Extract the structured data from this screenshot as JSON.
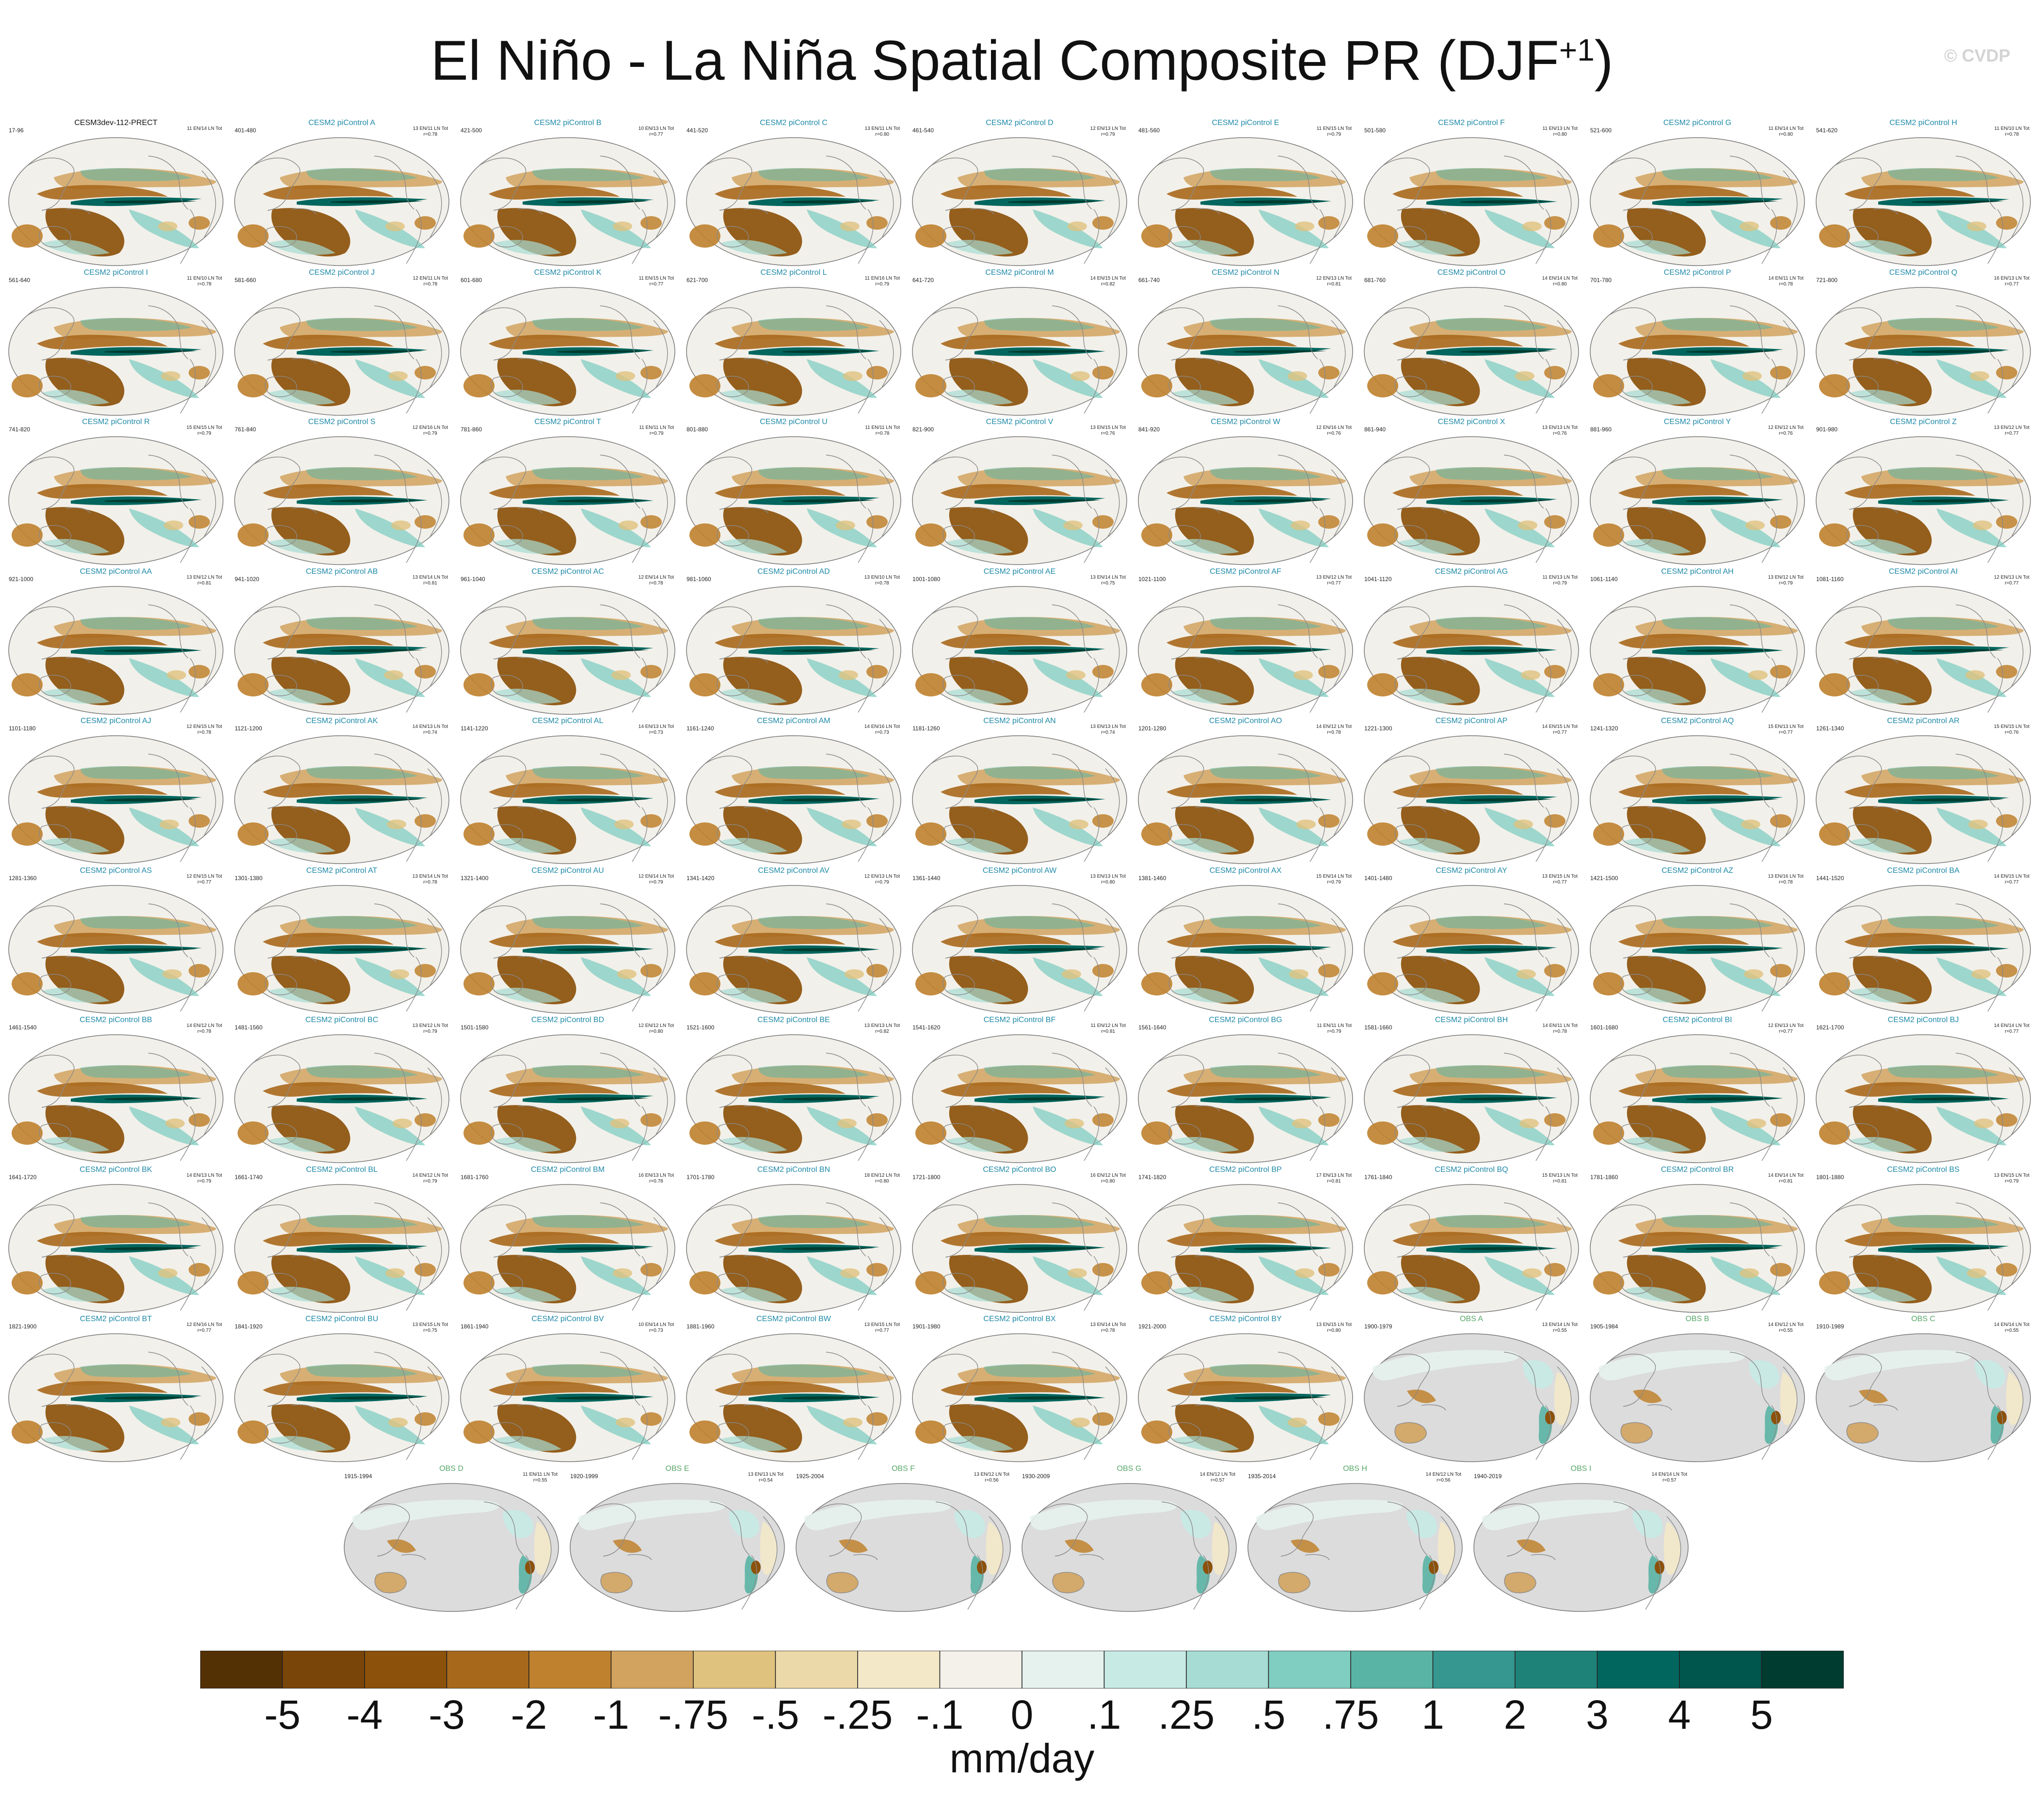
{
  "title": {
    "main": "El Niño - La Niña Spatial Composite PR (DJF",
    "superscript": "+1",
    "close": ")"
  },
  "credit": "© CVDP",
  "colors": {
    "control_name": "#111111",
    "model_name": "#1f8aa8",
    "obs_name": "#58a868",
    "land_obs": "#dcdcdc",
    "coast": "#8a8a8a"
  },
  "panels": [
    {
      "name": "CESM3dev-112-PRECT",
      "years": "17-96",
      "stats": "11 EN/14 LN Tot",
      "type": "control"
    },
    {
      "name": "CESM2 piControl A",
      "years": "401-480",
      "stats": "13 EN/11 LN Tot\nr=0.78",
      "type": "model"
    },
    {
      "name": "CESM2 piControl B",
      "years": "421-500",
      "stats": "10 EN/13 LN Tot\nr=0.77",
      "type": "model"
    },
    {
      "name": "CESM2 piControl C",
      "years": "441-520",
      "stats": "13 EN/11 LN Tot\nr=0.80",
      "type": "model"
    },
    {
      "name": "CESM2 piControl D",
      "years": "461-540",
      "stats": "12 EN/13 LN Tot\nr=0.79",
      "type": "model"
    },
    {
      "name": "CESM2 piControl E",
      "years": "481-560",
      "stats": "11 EN/15 LN Tot\nr=0.79",
      "type": "model"
    },
    {
      "name": "CESM2 piControl F",
      "years": "501-580",
      "stats": "11 EN/13 LN Tot\nr=0.80",
      "type": "model"
    },
    {
      "name": "CESM2 piControl G",
      "years": "521-600",
      "stats": "11 EN/14 LN Tot\nr=0.80",
      "type": "model"
    },
    {
      "name": "CESM2 piControl H",
      "years": "541-620",
      "stats": "11 EN/10 LN Tot\nr=0.78",
      "type": "model"
    },
    {
      "name": "CESM2 piControl I",
      "years": "561-640",
      "stats": "11 EN/10 LN Tot\nr=0.78",
      "type": "model"
    },
    {
      "name": "CESM2 piControl J",
      "years": "581-660",
      "stats": "12 EN/11 LN Tot\nr=0.78",
      "type": "model"
    },
    {
      "name": "CESM2 piControl K",
      "years": "601-680",
      "stats": "11 EN/15 LN Tot\nr=0.77",
      "type": "model"
    },
    {
      "name": "CESM2 piControl L",
      "years": "621-700",
      "stats": "11 EN/16 LN Tot\nr=0.79",
      "type": "model"
    },
    {
      "name": "CESM2 piControl M",
      "years": "641-720",
      "stats": "14 EN/15 LN Tot\nr=0.82",
      "type": "model"
    },
    {
      "name": "CESM2 piControl N",
      "years": "661-740",
      "stats": "12 EN/13 LN Tot\nr=0.81",
      "type": "model"
    },
    {
      "name": "CESM2 piControl O",
      "years": "681-760",
      "stats": "14 EN/14 LN Tot\nr=0.80",
      "type": "model"
    },
    {
      "name": "CESM2 piControl P",
      "years": "701-780",
      "stats": "14 EN/11 LN Tot\nr=0.78",
      "type": "model"
    },
    {
      "name": "CESM2 piControl Q",
      "years": "721-800",
      "stats": "16 EN/13 LN Tot\nr=0.77",
      "type": "model"
    },
    {
      "name": "CESM2 piControl R",
      "years": "741-820",
      "stats": "15 EN/15 LN Tot\nr=0.79",
      "type": "model"
    },
    {
      "name": "CESM2 piControl S",
      "years": "761-840",
      "stats": "12 EN/16 LN Tot\nr=0.79",
      "type": "model"
    },
    {
      "name": "CESM2 piControl T",
      "years": "781-860",
      "stats": "11 EN/11 LN Tot\nr=0.79",
      "type": "model"
    },
    {
      "name": "CESM2 piControl U",
      "years": "801-880",
      "stats": "11 EN/11 LN Tot\nr=0.78",
      "type": "model"
    },
    {
      "name": "CESM2 piControl V",
      "years": "821-900",
      "stats": "13 EN/15 LN Tot\nr=0.76",
      "type": "model"
    },
    {
      "name": "CESM2 piControl W",
      "years": "841-920",
      "stats": "12 EN/16 LN Tot\nr=0.76",
      "type": "model"
    },
    {
      "name": "CESM2 piControl X",
      "years": "861-940",
      "stats": "13 EN/13 LN Tot\nr=0.76",
      "type": "model"
    },
    {
      "name": "CESM2 piControl Y",
      "years": "881-960",
      "stats": "12 EN/12 LN Tot\nr=0.76",
      "type": "model"
    },
    {
      "name": "CESM2 piControl Z",
      "years": "901-980",
      "stats": "13 EN/12 LN Tot\nr=0.77",
      "type": "model"
    },
    {
      "name": "CESM2 piControl AA",
      "years": "921-1000",
      "stats": "13 EN/12 LN Tot\nr=0.81",
      "type": "model"
    },
    {
      "name": "CESM2 piControl AB",
      "years": "941-1020",
      "stats": "13 EN/14 LN Tot\nr=0.81",
      "type": "model"
    },
    {
      "name": "CESM2 piControl AC",
      "years": "961-1040",
      "stats": "12 EN/14 LN Tot\nr=0.78",
      "type": "model"
    },
    {
      "name": "CESM2 piControl AD",
      "years": "981-1060",
      "stats": "13 EN/10 LN Tot\nr=0.78",
      "type": "model"
    },
    {
      "name": "CESM2 piControl AE",
      "years": "1001-1080",
      "stats": "13 EN/14 LN Tot\nr=0.75",
      "type": "model"
    },
    {
      "name": "CESM2 piControl AF",
      "years": "1021-1100",
      "stats": "13 EN/12 LN Tot\nr=0.77",
      "type": "model"
    },
    {
      "name": "CESM2 piControl AG",
      "years": "1041-1120",
      "stats": "11 EN/13 LN Tot\nr=0.79",
      "type": "model"
    },
    {
      "name": "CESM2 piControl AH",
      "years": "1061-1140",
      "stats": "13 EN/12 LN Tot\nr=0.79",
      "type": "model"
    },
    {
      "name": "CESM2 piControl AI",
      "years": "1081-1160",
      "stats": "12 EN/13 LN Tot\nr=0.77",
      "type": "model"
    },
    {
      "name": "CESM2 piControl AJ",
      "years": "1101-1180",
      "stats": "12 EN/15 LN Tot\nr=0.78",
      "type": "model"
    },
    {
      "name": "CESM2 piControl AK",
      "years": "1121-1200",
      "stats": "14 EN/13 LN Tot\nr=0.74",
      "type": "model"
    },
    {
      "name": "CESM2 piControl AL",
      "years": "1141-1220",
      "stats": "14 EN/13 LN Tot\nr=0.73",
      "type": "model"
    },
    {
      "name": "CESM2 piControl AM",
      "years": "1161-1240",
      "stats": "14 EN/16 LN Tot\nr=0.73",
      "type": "model"
    },
    {
      "name": "CESM2 piControl AN",
      "years": "1181-1260",
      "stats": "13 EN/13 LN Tot\nr=0.74",
      "type": "model"
    },
    {
      "name": "CESM2 piControl AO",
      "years": "1201-1280",
      "stats": "14 EN/12 LN Tot\nr=0.78",
      "type": "model"
    },
    {
      "name": "CESM2 piControl AP",
      "years": "1221-1300",
      "stats": "14 EN/15 LN Tot\nr=0.77",
      "type": "model"
    },
    {
      "name": "CESM2 piControl AQ",
      "years": "1241-1320",
      "stats": "15 EN/13 LN Tot\nr=0.77",
      "type": "model"
    },
    {
      "name": "CESM2 piControl AR",
      "years": "1261-1340",
      "stats": "15 EN/15 LN Tot\nr=0.76",
      "type": "model"
    },
    {
      "name": "CESM2 piControl AS",
      "years": "1281-1360",
      "stats": "12 EN/15 LN Tot\nr=0.77",
      "type": "model"
    },
    {
      "name": "CESM2 piControl AT",
      "years": "1301-1380",
      "stats": "13 EN/14 LN Tot\nr=0.78",
      "type": "model"
    },
    {
      "name": "CESM2 piControl AU",
      "years": "1321-1400",
      "stats": "12 EN/14 LN Tot\nr=0.79",
      "type": "model"
    },
    {
      "name": "CESM2 piControl AV",
      "years": "1341-1420",
      "stats": "12 EN/13 LN Tot\nr=0.79",
      "type": "model"
    },
    {
      "name": "CESM2 piControl AW",
      "years": "1361-1440",
      "stats": "13 EN/13 LN Tot\nr=0.80",
      "type": "model"
    },
    {
      "name": "CESM2 piControl AX",
      "years": "1381-1460",
      "stats": "15 EN/14 LN Tot\nr=0.79",
      "type": "model"
    },
    {
      "name": "CESM2 piControl AY",
      "years": "1401-1480",
      "stats": "13 EN/15 LN Tot\nr=0.77",
      "type": "model"
    },
    {
      "name": "CESM2 piControl AZ",
      "years": "1421-1500",
      "stats": "13 EN/16 LN Tot\nr=0.78",
      "type": "model"
    },
    {
      "name": "CESM2 piControl BA",
      "years": "1441-1520",
      "stats": "14 EN/15 LN Tot\nr=0.77",
      "type": "model"
    },
    {
      "name": "CESM2 piControl BB",
      "years": "1461-1540",
      "stats": "14 EN/12 LN Tot\nr=0.78",
      "type": "model"
    },
    {
      "name": "CESM2 piControl BC",
      "years": "1481-1560",
      "stats": "13 EN/12 LN Tot\nr=0.79",
      "type": "model"
    },
    {
      "name": "CESM2 piControl BD",
      "years": "1501-1580",
      "stats": "12 EN/12 LN Tot\nr=0.80",
      "type": "model"
    },
    {
      "name": "CESM2 piControl BE",
      "years": "1521-1600",
      "stats": "13 EN/13 LN Tot\nr=0.82",
      "type": "model"
    },
    {
      "name": "CESM2 piControl BF",
      "years": "1541-1620",
      "stats": "11 EN/12 LN Tot\nr=0.81",
      "type": "model"
    },
    {
      "name": "CESM2 piControl BG",
      "years": "1561-1640",
      "stats": "11 EN/11 LN Tot\nr=0.79",
      "type": "model"
    },
    {
      "name": "CESM2 piControl BH",
      "years": "1581-1660",
      "stats": "14 EN/11 LN Tot\nr=0.78",
      "type": "model"
    },
    {
      "name": "CESM2 piControl BI",
      "years": "1601-1680",
      "stats": "12 EN/13 LN Tot\nr=0.77",
      "type": "model"
    },
    {
      "name": "CESM2 piControl BJ",
      "years": "1621-1700",
      "stats": "14 EN/14 LN Tot\nr=0.77",
      "type": "model"
    },
    {
      "name": "CESM2 piControl BK",
      "years": "1641-1720",
      "stats": "14 EN/13 LN Tot\nr=0.79",
      "type": "model"
    },
    {
      "name": "CESM2 piControl BL",
      "years": "1661-1740",
      "stats": "14 EN/12 LN Tot\nr=0.79",
      "type": "model"
    },
    {
      "name": "CESM2 piControl BM",
      "years": "1681-1760",
      "stats": "16 EN/13 LN Tot\nr=0.78",
      "type": "model"
    },
    {
      "name": "CESM2 piControl BN",
      "years": "1701-1780",
      "stats": "18 EN/12 LN Tot\nr=0.80",
      "type": "model"
    },
    {
      "name": "CESM2 piControl BO",
      "years": "1721-1800",
      "stats": "16 EN/12 LN Tot\nr=0.80",
      "type": "model"
    },
    {
      "name": "CESM2 piControl BP",
      "years": "1741-1820",
      "stats": "17 EN/13 LN Tot\nr=0.81",
      "type": "model"
    },
    {
      "name": "CESM2 piControl BQ",
      "years": "1761-1840",
      "stats": "15 EN/13 LN Tot\nr=0.81",
      "type": "model"
    },
    {
      "name": "CESM2 piControl BR",
      "years": "1781-1860",
      "stats": "14 EN/14 LN Tot\nr=0.81",
      "type": "model"
    },
    {
      "name": "CESM2 piControl BS",
      "years": "1801-1880",
      "stats": "13 EN/15 LN Tot\nr=0.79",
      "type": "model"
    },
    {
      "name": "CESM2 piControl BT",
      "years": "1821-1900",
      "stats": "12 EN/16 LN Tot\nr=0.77",
      "type": "model"
    },
    {
      "name": "CESM2 piControl BU",
      "years": "1841-1920",
      "stats": "13 EN/15 LN Tot\nr=0.75",
      "type": "model"
    },
    {
      "name": "CESM2 piControl BV",
      "years": "1861-1940",
      "stats": "10 EN/14 LN Tot\nr=0.73",
      "type": "model"
    },
    {
      "name": "CESM2 piControl BW",
      "years": "1881-1960",
      "stats": "13 EN/15 LN Tot\nr=0.77",
      "type": "model"
    },
    {
      "name": "CESM2 piControl BX",
      "years": "1901-1980",
      "stats": "13 EN/14 LN Tot\nr=0.78",
      "type": "model"
    },
    {
      "name": "CESM2 piControl BY",
      "years": "1921-2000",
      "stats": "13 EN/15 LN Tot\nr=0.80",
      "type": "model"
    },
    {
      "name": "OBS A",
      "years": "1900-1979",
      "stats": "13 EN/14 LN Tot\nr=0.55",
      "type": "obs"
    },
    {
      "name": "OBS B",
      "years": "1905-1984",
      "stats": "14 EN/12 LN Tot\nr=0.55",
      "type": "obs"
    },
    {
      "name": "OBS C",
      "years": "1910-1989",
      "stats": "14 EN/14 LN Tot\nr=0.55",
      "type": "obs"
    },
    {
      "name": "OBS D",
      "years": "1915-1994",
      "stats": "11 EN/11 LN Tot\nr=0.55",
      "type": "obs"
    },
    {
      "name": "OBS E",
      "years": "1920-1999",
      "stats": "13 EN/13 LN Tot\nr=0.54",
      "type": "obs"
    },
    {
      "name": "OBS F",
      "years": "1925-2004",
      "stats": "13 EN/12 LN Tot\nr=0.56",
      "type": "obs"
    },
    {
      "name": "OBS G",
      "years": "1930-2009",
      "stats": "14 EN/12 LN Tot\nr=0.57",
      "type": "obs"
    },
    {
      "name": "OBS H",
      "years": "1935-2014",
      "stats": "14 EN/12 LN Tot\nr=0.56",
      "type": "obs"
    },
    {
      "name": "OBS I",
      "years": "1940-2019",
      "stats": "14 EN/14 LN Tot\nr=0.57",
      "type": "obs"
    }
  ],
  "colorbar": {
    "colors": [
      "#543005",
      "#7a4508",
      "#8c510a",
      "#a8681c",
      "#bf812d",
      "#d2a35f",
      "#dfc27d",
      "#ecd9a9",
      "#f3e8c8",
      "#f3f1ea",
      "#e6f2ee",
      "#c7eae5",
      "#a6dcd3",
      "#80cdc1",
      "#5ab4a5",
      "#35978f",
      "#1e8278",
      "#01665e",
      "#00554c",
      "#003c30"
    ],
    "labels": [
      "-5",
      "-4",
      "-3",
      "-2",
      "-1",
      "-.75",
      "-.5",
      "-.25",
      "-.1",
      "0",
      ".1",
      ".25",
      ".5",
      ".75",
      "1",
      "2",
      "3",
      "4",
      "5"
    ],
    "units": "mm/day"
  }
}
